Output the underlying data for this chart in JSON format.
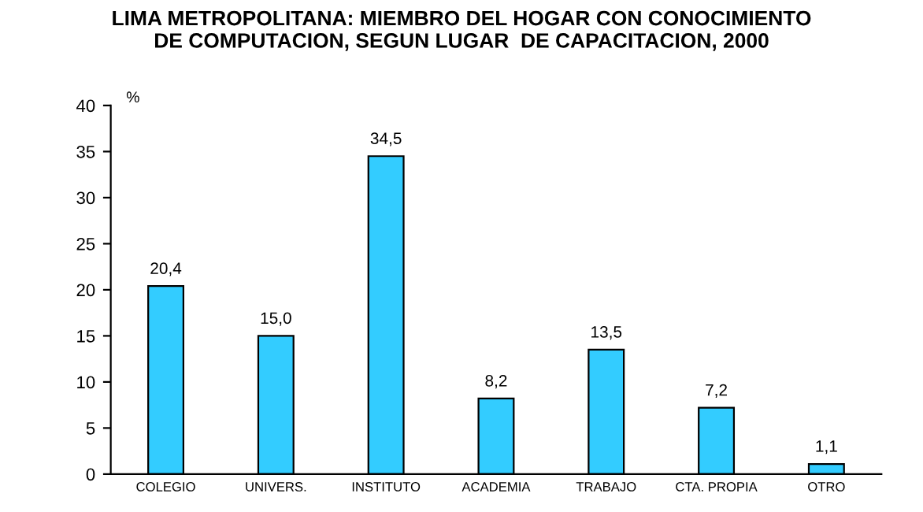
{
  "chart_data": {
    "type": "bar",
    "title": "LIMA METROPOLITANA: MIEMBRO DEL HOGAR CON CONOCIMIENTO\nDE COMPUTACION, SEGUN LUGAR  DE CAPACITACION, 2000",
    "ylabel": "%",
    "categories": [
      "COLEGIO",
      "UNIVERS.",
      "INSTITUTO",
      "ACADEMIA",
      "TRABAJO",
      "CTA. PROPIA",
      "OTRO"
    ],
    "values": [
      20.4,
      15.0,
      34.5,
      8.2,
      13.5,
      7.2,
      1.1
    ],
    "value_labels": [
      "20,4",
      "15,0",
      "34,5",
      "8,2",
      "13,5",
      "7,2",
      "1,1"
    ],
    "color": "#33ccff",
    "ylim": [
      0,
      40
    ],
    "yticks": [
      0,
      5,
      10,
      15,
      20,
      25,
      30,
      35,
      40
    ],
    "grid": false,
    "legend": false
  }
}
